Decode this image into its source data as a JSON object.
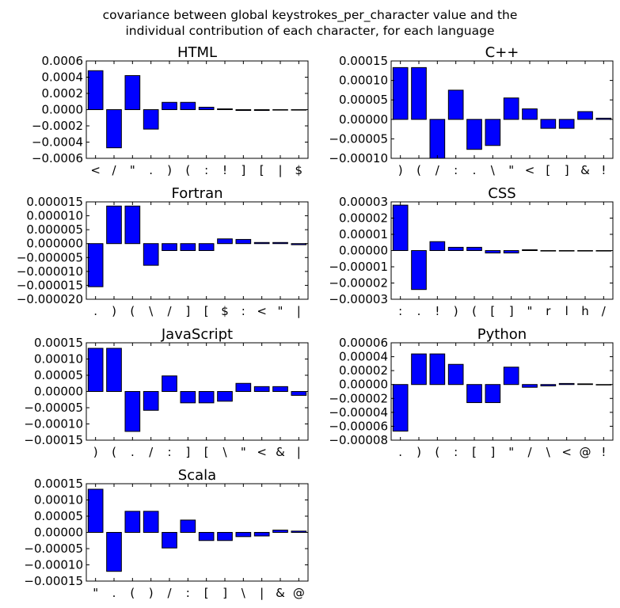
{
  "figure": {
    "suptitle_line1": "covariance between global keystrokes_per_character value and the",
    "suptitle_line2": "individual contribution of each character, for each language"
  },
  "colors": {
    "bar": "#0000ff",
    "edge": "#000000",
    "axis": "#000000"
  },
  "chart_data": [
    {
      "type": "bar",
      "title": "HTML",
      "categories": [
        "<",
        "/",
        "\"",
        ".",
        ")",
        "(",
        ":",
        "!",
        "]",
        "[",
        "|",
        "$"
      ],
      "values": [
        0.00048,
        -0.00047,
        0.00042,
        -0.00024,
        9e-05,
        9e-05,
        3e-05,
        1e-05,
        -1e-05,
        -1e-05,
        0.0,
        0.0
      ],
      "ylim": [
        -0.0006,
        0.0006
      ],
      "yticks": [
        -0.0006,
        -0.0004,
        -0.0002,
        0.0,
        0.0002,
        0.0004,
        0.0006
      ],
      "ytick_labels": [
        "−0.0006",
        "−0.0004",
        "−0.0002",
        "0.0000",
        "0.0002",
        "0.0004",
        "0.0006"
      ]
    },
    {
      "type": "bar",
      "title": "C++",
      "categories": [
        ")",
        "(",
        "/",
        ":",
        ".",
        "\\",
        "\"",
        "<",
        "[",
        "]",
        "&",
        "!"
      ],
      "values": [
        0.000133,
        0.000133,
        -0.0001,
        7.5e-05,
        -7.7e-05,
        -6.7e-05,
        5.5e-05,
        2.7e-05,
        -2.3e-05,
        -2.3e-05,
        2e-05,
        3e-06
      ],
      "ylim": [
        -0.0001,
        0.00015
      ],
      "yticks": [
        -0.0001,
        -5e-05,
        0.0,
        5e-05,
        0.0001,
        0.00015
      ],
      "ytick_labels": [
        "−0.00010",
        "−0.00005",
        "0.00000",
        "0.00005",
        "0.00010",
        "0.00015"
      ]
    },
    {
      "type": "bar",
      "title": "Fortran",
      "categories": [
        ".",
        ")",
        "(",
        "\\",
        "/",
        "]",
        "[",
        "$",
        ":",
        "<",
        "\"",
        "|"
      ],
      "values": [
        -1.55e-05,
        1.35e-05,
        1.35e-05,
        -7.8e-06,
        -2.5e-06,
        -2.5e-06,
        -2.5e-06,
        1.7e-06,
        1.5e-06,
        4e-07,
        4e-07,
        -4e-07
      ],
      "ylim": [
        -2e-05,
        1.5e-05
      ],
      "yticks": [
        -2e-05,
        -1.5e-05,
        -1e-05,
        -5e-06,
        0.0,
        5e-06,
        1e-05,
        1.5e-05
      ],
      "ytick_labels": [
        "−0.000020",
        "−0.000015",
        "−0.000010",
        "−0.000005",
        "0.000000",
        "0.000005",
        "0.000010",
        "0.000015"
      ]
    },
    {
      "type": "bar",
      "title": "CSS",
      "categories": [
        ":",
        ".",
        "!",
        ")",
        "(",
        "[",
        "]",
        "\"",
        "r",
        "l",
        "h",
        "/"
      ],
      "values": [
        2.8e-05,
        -2.4e-05,
        5.5e-06,
        2e-06,
        2e-06,
        -1.5e-06,
        -1.5e-06,
        5e-07,
        0.0,
        0.0,
        0.0,
        0.0
      ],
      "ylim": [
        -3e-05,
        3e-05
      ],
      "yticks": [
        -3e-05,
        -2e-05,
        -1e-05,
        0.0,
        1e-05,
        2e-05,
        3e-05
      ],
      "ytick_labels": [
        "−0.00003",
        "−0.00002",
        "−0.00001",
        "0.00000",
        "0.00001",
        "0.00002",
        "0.00003"
      ]
    },
    {
      "type": "bar",
      "title": "JavaScript",
      "categories": [
        ")",
        "(",
        ".",
        "/",
        ":",
        "]",
        "[",
        "\\",
        "\"",
        "<",
        "&",
        "|"
      ],
      "values": [
        0.000133,
        0.000133,
        -0.000123,
        -5.8e-05,
        4.8e-05,
        -3.5e-05,
        -3.5e-05,
        -3e-05,
        2.5e-05,
        1.5e-05,
        1.5e-05,
        -1.2e-05
      ],
      "ylim": [
        -0.00015,
        0.00015
      ],
      "yticks": [
        -0.00015,
        -0.0001,
        -5e-05,
        0.0,
        5e-05,
        0.0001,
        0.00015
      ],
      "ytick_labels": [
        "−0.00015",
        "−0.00010",
        "−0.00005",
        "0.00000",
        "0.00005",
        "0.00010",
        "0.00015"
      ]
    },
    {
      "type": "bar",
      "title": "Python",
      "categories": [
        ".",
        ")",
        "(",
        ":",
        "[",
        "]",
        "\"",
        "/",
        "\\",
        "<",
        "@",
        "!"
      ],
      "values": [
        -6.7e-05,
        4.4e-05,
        4.4e-05,
        2.9e-05,
        -2.6e-05,
        -2.6e-05,
        2.5e-05,
        -4e-06,
        -2e-06,
        1.5e-06,
        1e-06,
        0.0
      ],
      "ylim": [
        -8e-05,
        6e-05
      ],
      "yticks": [
        -8e-05,
        -6e-05,
        -4e-05,
        -2e-05,
        0.0,
        2e-05,
        4e-05,
        6e-05
      ],
      "ytick_labels": [
        "−0.00008",
        "−0.00006",
        "−0.00004",
        "−0.00002",
        "0.00000",
        "0.00002",
        "0.00004",
        "0.00006"
      ]
    },
    {
      "type": "bar",
      "title": "Scala",
      "categories": [
        "\"",
        ".",
        "(",
        ")",
        "/",
        ":",
        "[",
        "]",
        "\\",
        "|",
        "&",
        "@"
      ],
      "values": [
        0.000133,
        -0.00012,
        6.5e-05,
        6.5e-05,
        -4.8e-05,
        3.8e-05,
        -2.5e-05,
        -2.5e-05,
        -1.3e-05,
        -1.1e-05,
        7e-06,
        4e-06
      ],
      "ylim": [
        -0.00015,
        0.00015
      ],
      "yticks": [
        -0.00015,
        -0.0001,
        -5e-05,
        0.0,
        5e-05,
        0.0001,
        0.00015
      ],
      "ytick_labels": [
        "−0.00015",
        "−0.00010",
        "−0.00005",
        "0.00000",
        "0.00005",
        "0.00010",
        "0.00015"
      ]
    }
  ]
}
